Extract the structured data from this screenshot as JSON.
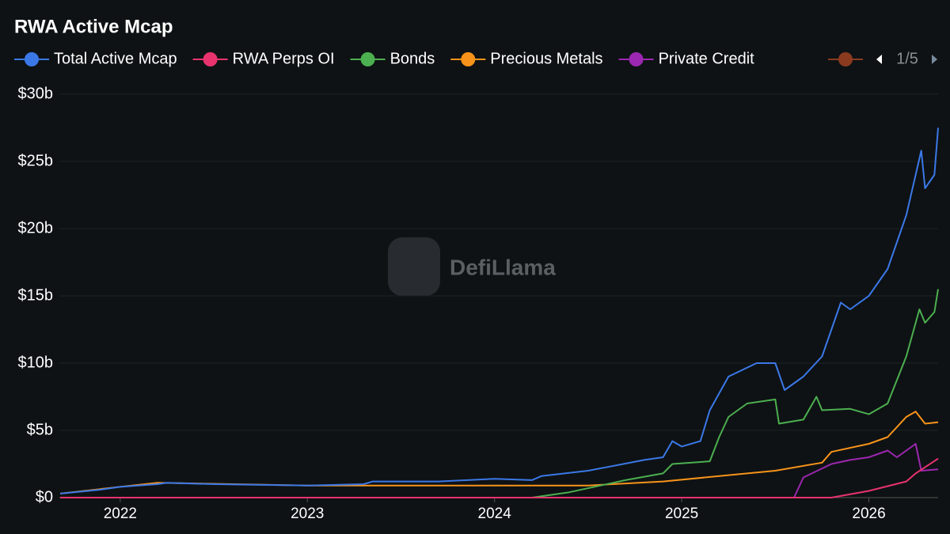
{
  "chart_data": {
    "type": "line",
    "title": "RWA Active Mcap",
    "watermark": "DefiLlama",
    "legend_page": "1/5",
    "xlim": [
      2021.675,
      2026.37
    ],
    "xticks": [
      2022,
      2023,
      2024,
      2025,
      2026
    ],
    "ylim": [
      0,
      30
    ],
    "yticks": [
      {
        "value": 0,
        "label": "$0"
      },
      {
        "value": 5,
        "label": "$5b"
      },
      {
        "value": 10,
        "label": "$10b"
      },
      {
        "value": 15,
        "label": "$15b"
      },
      {
        "value": 20,
        "label": "$20b"
      },
      {
        "value": 25,
        "label": "$25b"
      },
      {
        "value": 30,
        "label": "$30b"
      }
    ],
    "grid": true,
    "series": [
      {
        "name": "Total Active Mcap",
        "color": "#3b78e7",
        "x": [
          2021.68,
          2021.9,
          2022.0,
          2022.2,
          2022.25,
          2022.5,
          2023.0,
          2023.3,
          2023.35,
          2023.7,
          2024.0,
          2024.2,
          2024.25,
          2024.5,
          2024.8,
          2024.9,
          2024.95,
          2025.0,
          2025.1,
          2025.15,
          2025.25,
          2025.4,
          2025.5,
          2025.55,
          2025.65,
          2025.75,
          2025.85,
          2025.9,
          2026.0,
          2026.1,
          2026.2,
          2026.28,
          2026.3,
          2026.35,
          2026.37
        ],
        "values": [
          0.3,
          0.6,
          0.8,
          1.0,
          1.1,
          1.0,
          0.9,
          1.0,
          1.2,
          1.2,
          1.4,
          1.3,
          1.6,
          2.0,
          2.8,
          3.0,
          4.2,
          3.8,
          4.2,
          6.5,
          9.0,
          10.0,
          10.0,
          8.0,
          9.0,
          10.5,
          14.5,
          14.0,
          15.0,
          17.0,
          21.0,
          25.8,
          23.0,
          24.0,
          27.5
        ]
      },
      {
        "name": "RWA Perps OI",
        "color": "#e8336e",
        "x": [
          2021.68,
          2025.8,
          2026.0,
          2026.2,
          2026.25,
          2026.37
        ],
        "values": [
          0,
          0,
          0.5,
          1.2,
          1.8,
          2.9
        ]
      },
      {
        "name": "Bonds",
        "color": "#4caf50",
        "x": [
          2021.68,
          2024.2,
          2024.4,
          2024.7,
          2024.9,
          2024.95,
          2025.15,
          2025.2,
          2025.25,
          2025.35,
          2025.5,
          2025.52,
          2025.65,
          2025.72,
          2025.75,
          2025.9,
          2026.0,
          2026.1,
          2026.2,
          2026.27,
          2026.3,
          2026.35,
          2026.37
        ],
        "values": [
          0,
          0,
          0.4,
          1.3,
          1.8,
          2.5,
          2.7,
          4.5,
          6.0,
          7.0,
          7.3,
          5.5,
          5.8,
          7.5,
          6.5,
          6.6,
          6.2,
          7.0,
          10.5,
          14.0,
          13.0,
          13.8,
          15.5
        ]
      },
      {
        "name": "Precious Metals",
        "color": "#f7931a",
        "x": [
          2021.68,
          2022.0,
          2022.2,
          2023.0,
          2024.0,
          2024.5,
          2024.9,
          2025.5,
          2025.75,
          2025.8,
          2026.0,
          2026.1,
          2026.2,
          2026.25,
          2026.3,
          2026.37
        ],
        "values": [
          0.3,
          0.8,
          1.1,
          0.9,
          0.9,
          0.9,
          1.2,
          2.0,
          2.6,
          3.4,
          4.0,
          4.5,
          6.0,
          6.4,
          5.5,
          5.6
        ]
      },
      {
        "name": "Private Credit",
        "color": "#9c27b0",
        "x": [
          2021.68,
          2025.6,
          2025.65,
          2025.8,
          2025.9,
          2026.0,
          2026.1,
          2026.15,
          2026.25,
          2026.28,
          2026.37
        ],
        "values": [
          0,
          0,
          1.5,
          2.5,
          2.8,
          3.0,
          3.5,
          3.0,
          4.0,
          2.0,
          2.1
        ]
      }
    ]
  }
}
